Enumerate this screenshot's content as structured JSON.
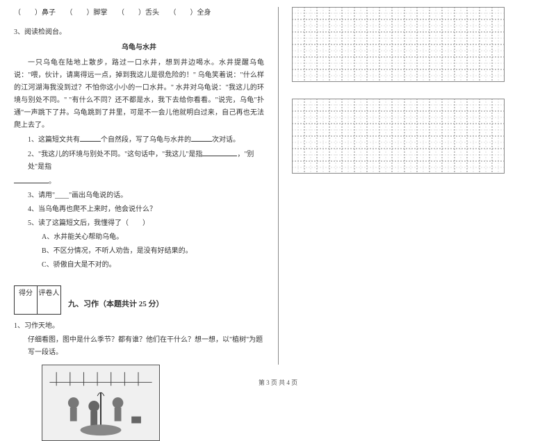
{
  "fill_row": {
    "items": [
      "鼻子",
      "脚掌",
      "舌头",
      "全身"
    ]
  },
  "reading": {
    "number": "3、",
    "title": "阅读检阅台。",
    "story_title": "乌龟与水井",
    "paragraph": "一只乌龟在陆地上散步，路过一口水井，想到井边喝水。水井提醒乌龟说：\"喂，伙计，请离得远一点，掉到我这儿是很危险的！\" 乌龟笑着说：\"什么样的江河湖海我没到过？不怕你这小小的一口水井。\" 水井对乌龟说：\"我这儿的环境与别处不同。\" \"有什么不同？还不都是水，我下去给你看看。\"说完，乌龟\"扑通\"一声跳下了井。乌龟跳到了井里，可是不一会儿他就明白过来，自己再也无法爬上去了。",
    "q1_prefix": "1、这篇短文共有",
    "q1_mid": "个自然段，写了乌龟与水井的",
    "q1_suffix": "次对话。",
    "q2_prefix": "2、\"我这儿的环境与别处不同。\"这句话中，\"我这儿\"是指",
    "q2_mid": "，\"别处\"是指",
    "q2_suffix": "。",
    "q3": "3、请用\"____\"画出乌龟说的话。",
    "q4": "4、当乌龟再也爬不上来时，他会说什么？",
    "q5": "5、读了这篇短文后，我懂得了（　　）",
    "q5a": "A、水井能关心帮助乌龟。",
    "q5b": "B、不区分情况，不听人劝告，是没有好结果的。",
    "q5c": "C、骄傲自大是不对的。"
  },
  "score_labels": {
    "score": "得分",
    "grader": "评卷人"
  },
  "section": {
    "title": "九、习作（本题共计 25 分）"
  },
  "writing": {
    "number": "1、",
    "title": "习作天地。",
    "prompt": "仔细看图，图中是什么季节？都有谁？他们在干什么？想一想，以\"植树\"为题写一段话。"
  },
  "grid": {
    "cols": 17,
    "rows1": 6,
    "rows2": 6,
    "cell": 18,
    "stroke": "#888",
    "dash": "2,2"
  },
  "footer": "第 3 页 共 4 页"
}
